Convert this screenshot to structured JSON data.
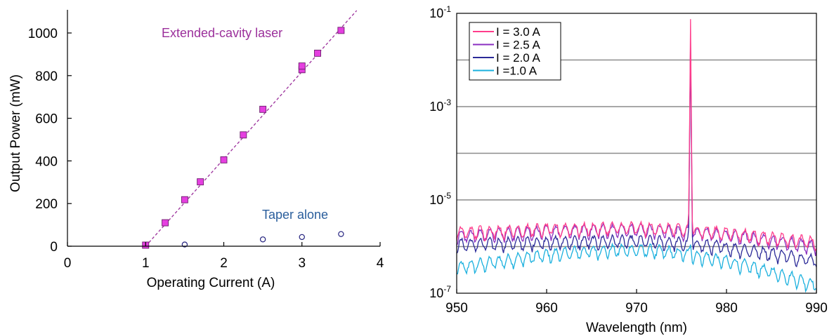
{
  "chart_data": [
    {
      "type": "scatter",
      "xlabel": "Operating Current (A)",
      "ylabel": "Output Power (mW)",
      "xlim": [
        0,
        4
      ],
      "ylim": [
        0,
        1100
      ],
      "x_ticks": [
        0,
        1,
        2,
        3,
        4
      ],
      "y_ticks": [
        0,
        200,
        400,
        600,
        800,
        1000
      ],
      "grid": false,
      "series": [
        {
          "name": "Extended-cavity laser",
          "marker": "square",
          "color": "#e53fe0",
          "label_color": "#9b2f9b",
          "x": [
            1.0,
            1.25,
            1.5,
            1.7,
            2.0,
            2.25,
            2.5,
            3.0,
            3.0,
            3.2,
            3.5
          ],
          "y": [
            5,
            110,
            218,
            302,
            405,
            522,
            642,
            828,
            845,
            905,
            1012
          ]
        },
        {
          "name": "Taper alone",
          "marker": "circle",
          "color": "#23217e",
          "label_color": "#2a5e9c",
          "x": [
            1.5,
            2.5,
            3.0,
            3.5
          ],
          "y": [
            8,
            32,
            43,
            57
          ]
        }
      ],
      "fit_line": {
        "x": [
          1.0,
          3.7
        ],
        "y": [
          0,
          1105
        ],
        "color": "#9b2f9b",
        "style": "dashed"
      }
    },
    {
      "type": "line",
      "xlabel": "Wavelength (nm)",
      "ylabel": "",
      "xlim": [
        950,
        990
      ],
      "x_ticks": [
        950,
        960,
        970,
        980,
        990
      ],
      "y_scale": "log",
      "ylim": [
        1e-07,
        0.1
      ],
      "y_tick_labels": [
        {
          "value": 0.1,
          "base": "10",
          "exp": "-1"
        },
        {
          "value": 0.001,
          "base": "10",
          "exp": "-3"
        },
        {
          "value": 1e-05,
          "base": "10",
          "exp": "-5"
        },
        {
          "value": 1e-07,
          "base": "10",
          "exp": "-7"
        }
      ],
      "grid": true,
      "legend": "top-left",
      "peak_wavelength": 976,
      "series": [
        {
          "name": "I = 3.0 A",
          "color": "#ff3d8b",
          "baseline": 2.5e-06,
          "peak": 0.075,
          "edge_left": 2e-06,
          "edge_right": 1.2e-06
        },
        {
          "name": "I = 2.5 A",
          "color": "#8a2fc0",
          "baseline": 2.3e-06,
          "peak": 0.03,
          "edge_left": 1.7e-06,
          "edge_right": 1e-06
        },
        {
          "name": "I = 2.0 A",
          "color": "#2b2a98",
          "baseline": 1.3e-06,
          "peak": 0.025,
          "edge_left": 1.1e-06,
          "edge_right": 5e-07
        },
        {
          "name": "I =1.0 A",
          "color": "#1ab0de",
          "baseline": 8.5e-07,
          "peak": 1.1e-06,
          "edge_left": 3.5e-07,
          "edge_right": 1.5e-07
        }
      ]
    }
  ]
}
